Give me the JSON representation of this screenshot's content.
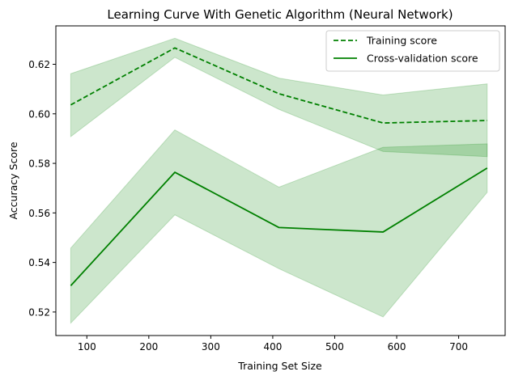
{
  "chart_data": {
    "type": "line",
    "title": "Learning Curve With Genetic Algorithm (Neural Network)",
    "xlabel": "Training Set Size",
    "ylabel": "Accuracy Score",
    "xlim": [
      50,
      775
    ],
    "ylim": [
      0.5105,
      0.6355
    ],
    "xticks": [
      100,
      200,
      300,
      400,
      500,
      600,
      700
    ],
    "yticks": [
      0.52,
      0.54,
      0.56,
      0.58,
      0.6,
      0.62
    ],
    "grid": false,
    "legend_position": "top-right",
    "color": "#008000",
    "band_color": "#b4dab4",
    "x": [
      74,
      242,
      410,
      578,
      746
    ],
    "series": [
      {
        "name": "Training score",
        "style": "dashed",
        "values": [
          0.6036,
          0.6266,
          0.6081,
          0.5963,
          0.5973
        ],
        "lower": [
          0.5908,
          0.6228,
          0.6018,
          0.5848,
          0.5827
        ],
        "upper": [
          0.6162,
          0.6305,
          0.6144,
          0.6076,
          0.6121
        ]
      },
      {
        "name": "Cross-validation score",
        "style": "solid",
        "values": [
          0.5306,
          0.5764,
          0.5541,
          0.5523,
          0.5781
        ],
        "lower": [
          0.5155,
          0.5592,
          0.5375,
          0.518,
          0.5683
        ],
        "upper": [
          0.5458,
          0.5935,
          0.5704,
          0.5865,
          0.5879
        ]
      }
    ]
  }
}
